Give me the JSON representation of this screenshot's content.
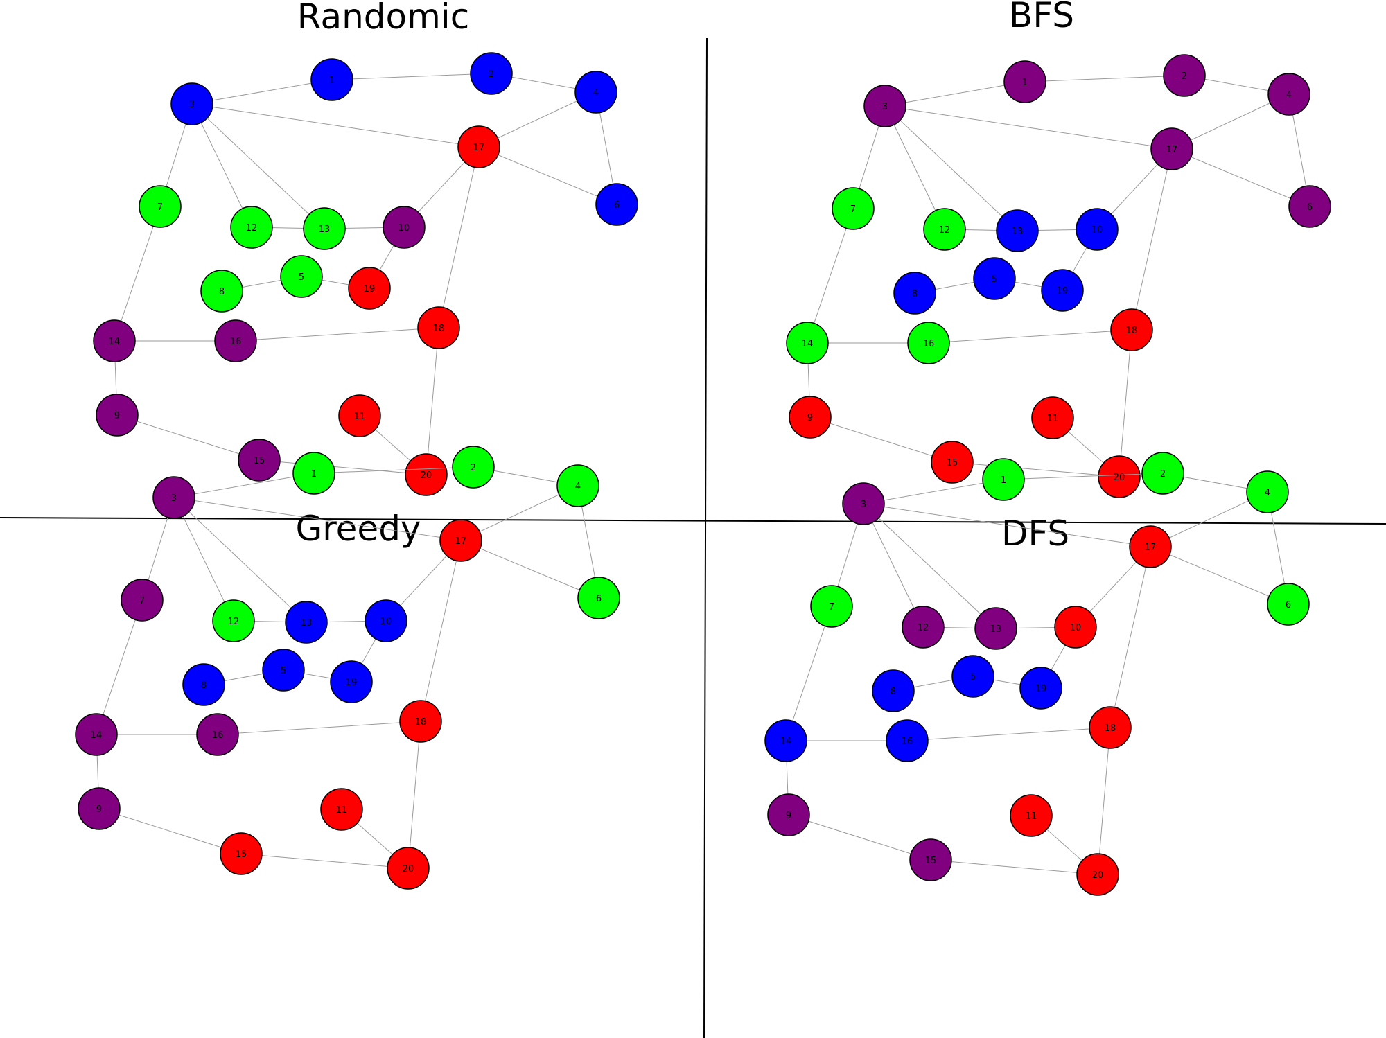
{
  "colors": {
    "blue": "#0000ff",
    "red": "#ff0000",
    "green": "#00ff00",
    "purple": "#800080"
  },
  "node_ids": [
    "1",
    "2",
    "3",
    "4",
    "5",
    "6",
    "7",
    "8",
    "9",
    "10",
    "11",
    "12",
    "13",
    "14",
    "15",
    "16",
    "17",
    "18",
    "19",
    "20"
  ],
  "edges": [
    [
      "3",
      "1"
    ],
    [
      "1",
      "2"
    ],
    [
      "2",
      "4"
    ],
    [
      "3",
      "17"
    ],
    [
      "3",
      "7"
    ],
    [
      "3",
      "12"
    ],
    [
      "3",
      "13"
    ],
    [
      "17",
      "4"
    ],
    [
      "17",
      "6"
    ],
    [
      "4",
      "6"
    ],
    [
      "17",
      "10"
    ],
    [
      "17",
      "18"
    ],
    [
      "12",
      "13"
    ],
    [
      "13",
      "10"
    ],
    [
      "10",
      "19"
    ],
    [
      "8",
      "5"
    ],
    [
      "5",
      "19"
    ],
    [
      "7",
      "14"
    ],
    [
      "14",
      "16"
    ],
    [
      "16",
      "18"
    ],
    [
      "14",
      "9"
    ],
    [
      "9",
      "15"
    ],
    [
      "15",
      "20"
    ],
    [
      "11",
      "20"
    ],
    [
      "18",
      "20"
    ]
  ],
  "panels": [
    {
      "title": "Randomic",
      "node_colors": {
        "1": "blue",
        "2": "blue",
        "3": "blue",
        "4": "blue",
        "6": "blue",
        "17": "red",
        "19": "red",
        "18": "red",
        "11": "red",
        "20": "red",
        "7": "green",
        "12": "green",
        "13": "green",
        "8": "green",
        "5": "green",
        "10": "purple",
        "14": "purple",
        "16": "purple",
        "9": "purple",
        "15": "purple"
      }
    },
    {
      "title": "BFS",
      "node_colors": {
        "1": "purple",
        "2": "purple",
        "3": "purple",
        "4": "purple",
        "17": "purple",
        "6": "purple",
        "7": "green",
        "12": "green",
        "14": "green",
        "16": "green",
        "13": "blue",
        "10": "blue",
        "8": "blue",
        "5": "blue",
        "19": "blue",
        "18": "red",
        "9": "red",
        "11": "red",
        "15": "red",
        "20": "red"
      }
    },
    {
      "title": "Greedy",
      "node_colors": {
        "1": "green",
        "2": "green",
        "4": "green",
        "6": "green",
        "12": "green",
        "3": "purple",
        "7": "purple",
        "14": "purple",
        "16": "purple",
        "9": "purple",
        "17": "red",
        "18": "red",
        "11": "red",
        "15": "red",
        "20": "red",
        "13": "blue",
        "10": "blue",
        "8": "blue",
        "5": "blue",
        "19": "blue"
      }
    },
    {
      "title": "DFS",
      "node_colors": {
        "1": "green",
        "2": "green",
        "4": "green",
        "6": "green",
        "7": "green",
        "3": "purple",
        "12": "purple",
        "13": "purple",
        "9": "purple",
        "15": "purple",
        "17": "red",
        "10": "red",
        "18": "red",
        "11": "red",
        "20": "red",
        "8": "blue",
        "5": "blue",
        "19": "blue",
        "14": "blue",
        "16": "blue"
      }
    }
  ]
}
